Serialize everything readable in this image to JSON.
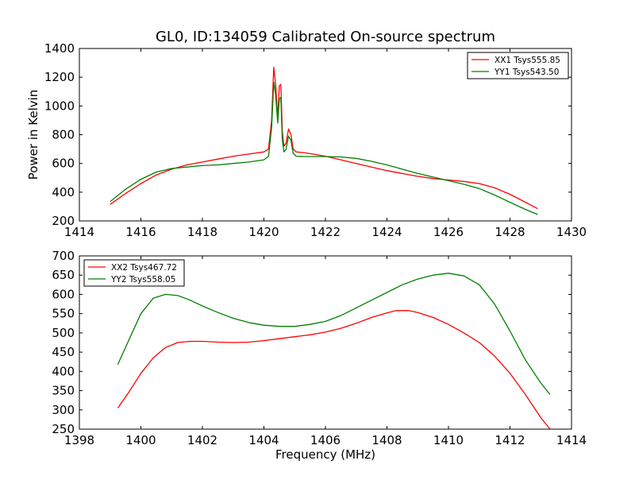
{
  "figure": {
    "title": "GL0, ID:134059 Calibrated On-source spectrum"
  },
  "chart_data": [
    {
      "type": "line",
      "title": "GL0, ID:134059 Calibrated On-source spectrum",
      "xlabel": "",
      "ylabel": "Power in Kelvin",
      "xlim": [
        1414,
        1430
      ],
      "ylim": [
        200,
        1400
      ],
      "xticks": [
        1414,
        1416,
        1418,
        1420,
        1422,
        1424,
        1426,
        1428,
        1430
      ],
      "yticks": [
        200,
        400,
        600,
        800,
        1000,
        1200,
        1400
      ],
      "grid": false,
      "legend": "top-right",
      "series": [
        {
          "name": "XX1 Tsys555.85",
          "color": "#ff0000",
          "x": [
            1415.0,
            1415.5,
            1416.0,
            1416.5,
            1417.0,
            1417.5,
            1418.0,
            1418.5,
            1419.0,
            1419.5,
            1420.0,
            1420.15,
            1420.25,
            1420.32,
            1420.38,
            1420.45,
            1420.5,
            1420.55,
            1420.6,
            1420.65,
            1420.72,
            1420.8,
            1420.88,
            1420.95,
            1421.05,
            1421.3,
            1421.6,
            1422.0,
            1422.5,
            1423.0,
            1423.5,
            1424.0,
            1424.5,
            1425.0,
            1425.5,
            1426.0,
            1426.5,
            1427.0,
            1427.5,
            1428.0,
            1428.5,
            1428.9
          ],
          "y": [
            315,
            390,
            460,
            520,
            560,
            590,
            610,
            630,
            650,
            665,
            680,
            700,
            900,
            1270,
            1150,
            920,
            1140,
            1150,
            820,
            720,
            740,
            840,
            800,
            700,
            680,
            675,
            665,
            650,
            625,
            600,
            575,
            550,
            530,
            510,
            495,
            485,
            475,
            460,
            430,
            385,
            330,
            285
          ]
        },
        {
          "name": "YY1 Tsys543.50",
          "color": "#008000",
          "x": [
            1415.0,
            1415.5,
            1416.0,
            1416.5,
            1417.0,
            1417.5,
            1418.0,
            1418.5,
            1419.0,
            1419.5,
            1420.0,
            1420.15,
            1420.25,
            1420.32,
            1420.38,
            1420.45,
            1420.5,
            1420.55,
            1420.6,
            1420.65,
            1420.72,
            1420.8,
            1420.88,
            1420.95,
            1421.05,
            1421.3,
            1421.6,
            1422.0,
            1422.5,
            1423.0,
            1423.5,
            1424.0,
            1424.5,
            1425.0,
            1425.5,
            1426.0,
            1426.5,
            1427.0,
            1427.5,
            1428.0,
            1428.5,
            1428.9
          ],
          "y": [
            335,
            420,
            490,
            540,
            565,
            575,
            585,
            590,
            600,
            610,
            625,
            650,
            850,
            1165,
            1080,
            880,
            1050,
            1060,
            760,
            680,
            700,
            790,
            760,
            670,
            650,
            648,
            648,
            648,
            645,
            635,
            615,
            590,
            560,
            530,
            505,
            480,
            455,
            425,
            380,
            330,
            280,
            245
          ]
        }
      ]
    },
    {
      "type": "line",
      "title": "",
      "xlabel": "Frequency (MHz)",
      "ylabel": "",
      "xlim": [
        1398,
        1414
      ],
      "ylim": [
        250,
        700
      ],
      "xticks": [
        1398,
        1400,
        1402,
        1404,
        1406,
        1408,
        1410,
        1412,
        1414
      ],
      "yticks": [
        250,
        300,
        350,
        400,
        450,
        500,
        550,
        600,
        650,
        700
      ],
      "grid": false,
      "legend": "top-left",
      "series": [
        {
          "name": "XX2 Tsys467.72",
          "color": "#ff0000",
          "x": [
            1399.25,
            1399.6,
            1400.0,
            1400.4,
            1400.8,
            1401.2,
            1401.6,
            1402.0,
            1402.5,
            1403.0,
            1403.5,
            1404.0,
            1404.5,
            1405.0,
            1405.5,
            1406.0,
            1406.5,
            1407.0,
            1407.5,
            1408.0,
            1408.3,
            1408.7,
            1409.0,
            1409.5,
            1410.0,
            1410.5,
            1411.0,
            1411.5,
            1412.0,
            1412.5,
            1413.0,
            1413.3
          ],
          "y": [
            305,
            345,
            395,
            435,
            462,
            475,
            478,
            478,
            476,
            475,
            476,
            480,
            485,
            490,
            495,
            502,
            512,
            525,
            540,
            552,
            558,
            558,
            553,
            540,
            522,
            500,
            475,
            440,
            395,
            340,
            280,
            250
          ]
        },
        {
          "name": "YY2 Tsys558.05",
          "color": "#008000",
          "x": [
            1399.25,
            1399.6,
            1400.0,
            1400.4,
            1400.8,
            1401.2,
            1401.6,
            1402.0,
            1402.5,
            1403.0,
            1403.5,
            1404.0,
            1404.5,
            1405.0,
            1405.5,
            1406.0,
            1406.5,
            1407.0,
            1407.5,
            1408.0,
            1408.5,
            1409.0,
            1409.5,
            1410.0,
            1410.5,
            1411.0,
            1411.5,
            1412.0,
            1412.5,
            1413.0,
            1413.3
          ],
          "y": [
            418,
            480,
            550,
            590,
            600,
            597,
            585,
            570,
            553,
            538,
            527,
            520,
            517,
            517,
            522,
            530,
            545,
            565,
            585,
            605,
            625,
            640,
            650,
            655,
            648,
            625,
            575,
            505,
            430,
            370,
            340
          ]
        }
      ]
    }
  ]
}
